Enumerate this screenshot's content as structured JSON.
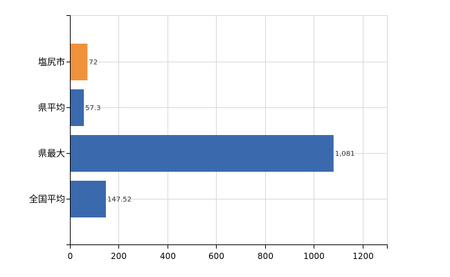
{
  "chart_data": {
    "type": "bar",
    "orientation": "horizontal",
    "categories": [
      "塩尻市",
      "県平均",
      "県最大",
      "全国平均"
    ],
    "values": [
      72,
      57.3,
      1081,
      147.52
    ],
    "value_labels": [
      "72",
      "57.3",
      "1,081",
      "147.52"
    ],
    "bar_colors": [
      "#F0923B",
      "#3A6AAD",
      "#3A6AAD",
      "#3A6AAD"
    ],
    "x_ticks": [
      0,
      200,
      400,
      600,
      800,
      1000,
      1200
    ],
    "xlim": [
      0,
      1300
    ],
    "grid": true
  }
}
